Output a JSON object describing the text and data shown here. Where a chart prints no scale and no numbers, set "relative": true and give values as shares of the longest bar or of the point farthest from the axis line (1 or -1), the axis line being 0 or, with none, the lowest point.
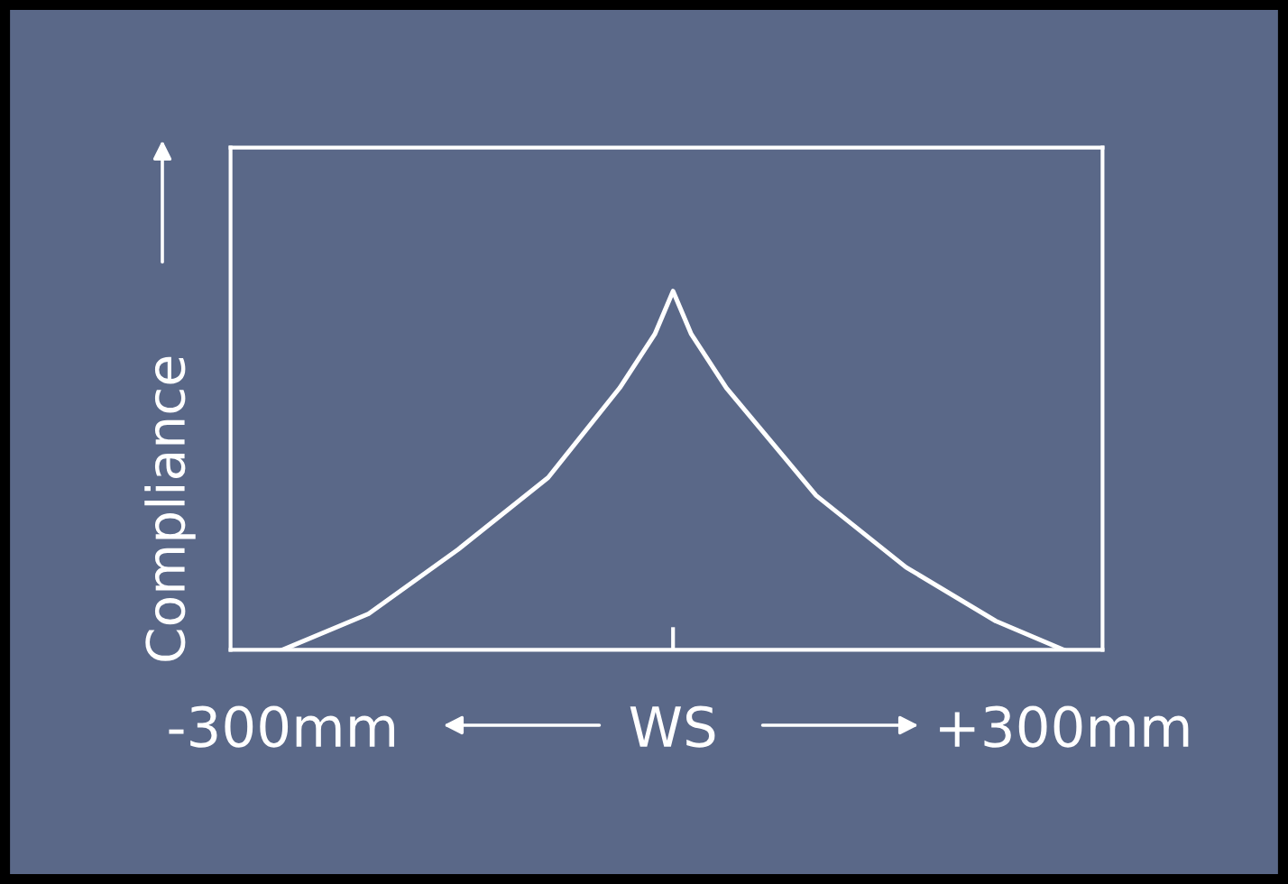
{
  "chart_data": {
    "type": "line",
    "relative": true,
    "ylabel": "Compliance",
    "x": [
      -300,
      -234,
      -165,
      -96,
      -41,
      -14,
      0,
      14,
      41,
      110,
      179,
      248,
      300
    ],
    "values": [
      0,
      0.1,
      0.28,
      0.48,
      0.73,
      0.88,
      1,
      0.88,
      0.73,
      0.43,
      0.23,
      0.08,
      0
    ],
    "color": "#ffffff",
    "xlim": [
      -340,
      330
    ],
    "xticks": [
      {
        "value": -300,
        "label": "-300mm"
      },
      {
        "value": 0,
        "label": "WS"
      },
      {
        "value": 300,
        "label": "+300mm"
      }
    ],
    "grid": false,
    "legend": false,
    "marker": "none",
    "line_style": "solid"
  }
}
